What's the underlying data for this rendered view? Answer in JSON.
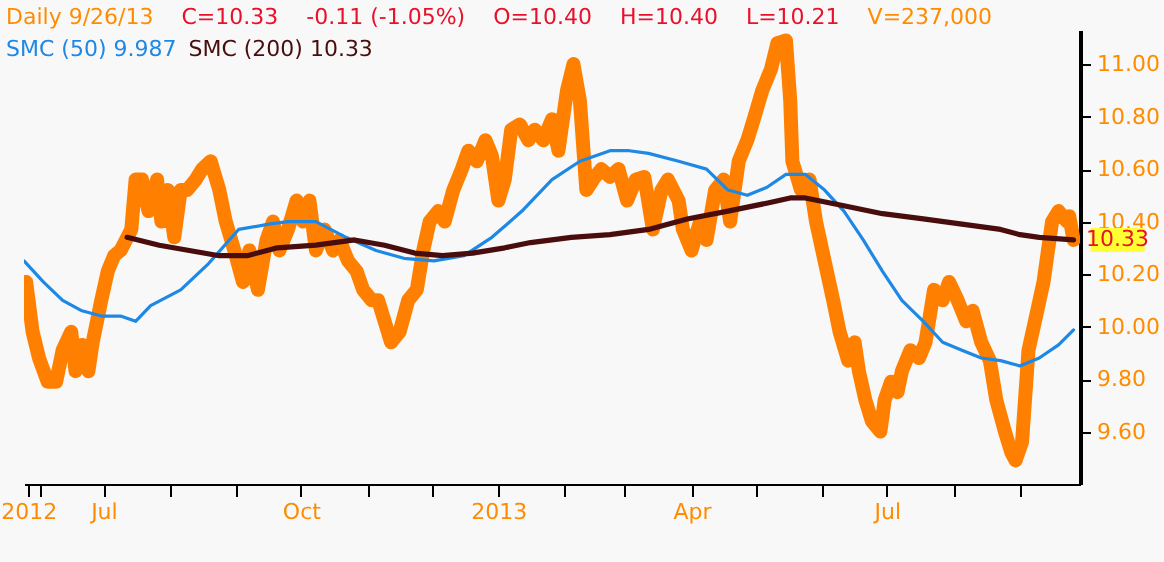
{
  "chart_data": {
    "type": "line",
    "title": "Daily 9/26/13",
    "annotations": [
      "C=10.33",
      "-0.11 (-1.05%)",
      "O=10.40",
      "H=10.40",
      "L=10.21",
      "V=237,000",
      {
        "text": "10.33",
        "x": "2013-09-26",
        "y": 10.33
      }
    ],
    "xlim": [
      "2012-05-25",
      "2013-09-29"
    ],
    "xticks": [
      {
        "value": "2012-05-27",
        "label": "2012"
      },
      {
        "value": "2012-06-01",
        "label": null
      },
      {
        "value": "2012-07-01",
        "label": "Jul"
      },
      {
        "value": "2012-08-01",
        "label": null
      },
      {
        "value": "2012-09-01",
        "label": null
      },
      {
        "value": "2012-10-01",
        "label": "Oct"
      },
      {
        "value": "2012-11-01",
        "label": null
      },
      {
        "value": "2012-12-01",
        "label": null
      },
      {
        "value": "2013-01-01",
        "label": "2013"
      },
      {
        "value": "2013-02-01",
        "label": null
      },
      {
        "value": "2013-03-01",
        "label": null
      },
      {
        "value": "2013-04-01",
        "label": "Apr"
      },
      {
        "value": "2013-05-01",
        "label": null
      },
      {
        "value": "2013-06-01",
        "label": null
      },
      {
        "value": "2013-07-01",
        "label": "Jul"
      },
      {
        "value": "2013-08-01",
        "label": null
      },
      {
        "value": "2013-09-01",
        "label": null
      }
    ],
    "ylim": [
      9.4,
      11.13
    ],
    "yticks": [
      {
        "value": 9.6,
        "label": "9.60"
      },
      {
        "value": 9.8,
        "label": "9.80"
      },
      {
        "value": 10.0,
        "label": "10.00"
      },
      {
        "value": 10.2,
        "label": "10.20"
      },
      {
        "value": 10.4,
        "label": "10.40"
      },
      {
        "value": 10.6,
        "label": "10.60"
      },
      {
        "value": 10.8,
        "label": "10.80"
      },
      {
        "value": 11.0,
        "label": "11.00"
      }
    ],
    "grid": false,
    "legend": "top left",
    "series": [
      {
        "color": "#ff8000",
        "x": [
          "2012-05-26",
          "2012-05-29",
          "2012-06-01",
          "2012-06-05",
          "2012-06-09",
          "2012-06-12",
          "2012-06-16",
          "2012-06-18",
          "2012-06-21",
          "2012-06-24",
          "2012-06-26",
          "2012-06-30",
          "2012-07-03",
          "2012-07-06",
          "2012-07-09",
          "2012-07-14",
          "2012-07-16",
          "2012-07-19",
          "2012-07-22",
          "2012-07-26",
          "2012-07-28",
          "2012-07-31",
          "2012-08-03",
          "2012-08-06",
          "2012-08-09",
          "2012-08-13",
          "2012-08-16",
          "2012-08-20",
          "2012-08-24",
          "2012-08-27",
          "2012-08-31",
          "2012-09-04",
          "2012-09-07",
          "2012-09-11",
          "2012-09-15",
          "2012-09-18",
          "2012-09-21",
          "2012-09-25",
          "2012-09-29",
          "2012-10-02",
          "2012-10-05",
          "2012-10-08",
          "2012-10-12",
          "2012-10-16",
          "2012-10-19",
          "2012-10-23",
          "2012-10-27",
          "2012-10-30",
          "2012-11-03",
          "2012-11-06",
          "2012-11-12",
          "2012-11-16",
          "2012-11-20",
          "2012-11-24",
          "2012-11-27",
          "2012-11-30",
          "2012-12-04",
          "2012-12-07",
          "2012-12-11",
          "2012-12-15",
          "2012-12-18",
          "2012-12-22",
          "2012-12-26",
          "2012-12-29",
          "2013-01-01",
          "2013-01-04",
          "2013-01-07",
          "2013-01-11",
          "2013-01-15",
          "2013-01-18",
          "2013-01-22",
          "2013-01-26",
          "2013-01-29",
          "2013-02-02",
          "2013-02-05",
          "2013-02-08",
          "2013-02-11",
          "2013-02-15",
          "2013-02-18",
          "2013-02-22",
          "2013-02-26",
          "2013-03-02",
          "2013-03-06",
          "2013-03-10",
          "2013-03-14",
          "2013-03-18",
          "2013-03-21",
          "2013-03-26",
          "2013-03-28",
          "2013-04-01",
          "2013-04-05",
          "2013-04-08",
          "2013-04-12",
          "2013-04-16",
          "2013-04-19",
          "2013-04-23",
          "2013-04-27",
          "2013-04-30",
          "2013-05-04",
          "2013-05-08",
          "2013-05-11",
          "2013-05-15",
          "2013-05-17",
          "2013-05-18",
          "2013-05-22",
          "2013-05-26",
          "2013-05-29",
          "2013-06-02",
          "2013-06-06",
          "2013-06-09",
          "2013-06-13",
          "2013-06-16",
          "2013-06-18",
          "2013-06-21",
          "2013-06-24",
          "2013-06-28",
          "2013-06-30",
          "2013-07-03",
          "2013-07-06",
          "2013-07-08",
          "2013-07-12",
          "2013-07-16",
          "2013-07-19",
          "2013-07-23",
          "2013-07-27",
          "2013-07-30",
          "2013-08-03",
          "2013-08-07",
          "2013-08-10",
          "2013-08-14",
          "2013-08-18",
          "2013-08-21",
          "2013-08-25",
          "2013-08-28",
          "2013-08-30",
          "2013-09-02",
          "2013-09-05",
          "2013-09-08",
          "2013-09-12",
          "2013-09-16",
          "2013-09-19",
          "2013-09-23",
          "2013-09-24",
          "2013-09-26"
        ],
        "values": [
          10.17,
          9.98,
          9.88,
          9.79,
          9.79,
          9.91,
          9.98,
          9.83,
          9.93,
          9.83,
          9.94,
          10.1,
          10.21,
          10.27,
          10.29,
          10.37,
          10.56,
          10.56,
          10.44,
          10.56,
          10.4,
          10.52,
          10.34,
          10.52,
          10.52,
          10.56,
          10.6,
          10.63,
          10.52,
          10.4,
          10.29,
          10.17,
          10.29,
          10.14,
          10.33,
          10.4,
          10.29,
          10.37,
          10.48,
          10.4,
          10.48,
          10.29,
          10.37,
          10.29,
          10.33,
          10.25,
          10.21,
          10.14,
          10.1,
          10.1,
          9.94,
          9.98,
          10.1,
          10.14,
          10.29,
          10.4,
          10.44,
          10.4,
          10.52,
          10.6,
          10.67,
          10.63,
          10.71,
          10.65,
          10.48,
          10.56,
          10.75,
          10.77,
          10.71,
          10.75,
          10.71,
          10.79,
          10.67,
          10.9,
          11.0,
          10.86,
          10.52,
          10.57,
          10.6,
          10.57,
          10.6,
          10.48,
          10.56,
          10.57,
          10.37,
          10.52,
          10.56,
          10.48,
          10.37,
          10.29,
          10.4,
          10.33,
          10.52,
          10.56,
          10.4,
          10.63,
          10.71,
          10.79,
          10.9,
          10.98,
          11.08,
          11.09,
          10.86,
          10.63,
          10.52,
          10.56,
          10.4,
          10.25,
          10.1,
          9.98,
          9.87,
          9.94,
          9.83,
          9.72,
          9.64,
          9.6,
          9.72,
          9.79,
          9.75,
          9.83,
          9.91,
          9.88,
          9.94,
          10.14,
          10.1,
          10.17,
          10.1,
          10.02,
          10.06,
          9.94,
          9.87,
          9.72,
          9.6,
          9.52,
          9.49,
          9.56,
          9.91,
          10.02,
          10.17,
          10.4,
          10.44,
          10.4,
          10.42,
          10.33
        ]
      },
      {
        "name": "SMC (50) 9.987",
        "color": "#1e88e5",
        "x": [
          "2012-05-25",
          "2012-06-03",
          "2012-06-12",
          "2012-06-21",
          "2012-06-30",
          "2012-07-09",
          "2012-07-16",
          "2012-07-23",
          "2012-08-06",
          "2012-08-19",
          "2012-09-02",
          "2012-09-16",
          "2012-09-25",
          "2012-10-08",
          "2012-10-22",
          "2012-11-05",
          "2012-11-18",
          "2012-12-02",
          "2012-12-16",
          "2012-12-29",
          "2013-01-12",
          "2013-01-26",
          "2013-02-08",
          "2013-02-22",
          "2013-03-03",
          "2013-03-12",
          "2013-03-26",
          "2013-04-08",
          "2013-04-18",
          "2013-04-27",
          "2013-05-06",
          "2013-05-15",
          "2013-05-24",
          "2013-06-02",
          "2013-06-11",
          "2013-06-20",
          "2013-06-29",
          "2013-07-08",
          "2013-07-18",
          "2013-07-27",
          "2013-08-05",
          "2013-08-14",
          "2013-08-23",
          "2013-09-01",
          "2013-09-10",
          "2013-09-19",
          "2013-09-26"
        ],
        "values": [
          10.25,
          10.17,
          10.1,
          10.06,
          10.04,
          10.04,
          10.02,
          10.08,
          10.14,
          10.24,
          10.37,
          10.39,
          10.4,
          10.4,
          10.34,
          10.29,
          10.26,
          10.25,
          10.27,
          10.34,
          10.44,
          10.56,
          10.63,
          10.67,
          10.67,
          10.66,
          10.63,
          10.6,
          10.52,
          10.5,
          10.53,
          10.58,
          10.58,
          10.52,
          10.44,
          10.33,
          10.21,
          10.1,
          10.02,
          9.94,
          9.91,
          9.88,
          9.87,
          9.85,
          9.88,
          9.93,
          9.987
        ]
      },
      {
        "name": "SMC (200) 10.33",
        "color": "#4a0d0d",
        "x": [
          "2012-07-12",
          "2012-07-27",
          "2012-08-10",
          "2012-08-24",
          "2012-09-06",
          "2012-09-20",
          "2012-10-08",
          "2012-10-26",
          "2012-11-09",
          "2012-11-23",
          "2012-12-06",
          "2012-12-20",
          "2013-01-04",
          "2013-01-16",
          "2013-02-04",
          "2013-02-22",
          "2013-03-12",
          "2013-03-30",
          "2013-04-18",
          "2013-05-06",
          "2013-05-17",
          "2013-05-24",
          "2013-06-11",
          "2013-06-29",
          "2013-07-18",
          "2013-08-05",
          "2013-08-23",
          "2013-09-01",
          "2013-09-10",
          "2013-09-26"
        ],
        "values": [
          10.34,
          10.31,
          10.29,
          10.27,
          10.27,
          10.3,
          10.31,
          10.33,
          10.31,
          10.28,
          10.27,
          10.28,
          10.3,
          10.32,
          10.34,
          10.35,
          10.37,
          10.41,
          10.44,
          10.47,
          10.49,
          10.49,
          10.46,
          10.43,
          10.41,
          10.39,
          10.37,
          10.35,
          10.34,
          10.33
        ]
      }
    ]
  }
}
